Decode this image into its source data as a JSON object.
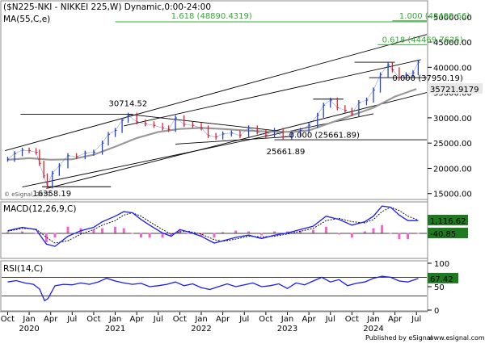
{
  "header": {
    "symbol_title": "($N225-NKI - NIKKEI 225,W) Dynamic,0:00-24:00",
    "ma_label": "MA(55,C,e)",
    "watermark": "© eSignal, 2019"
  },
  "footer": {
    "published": "Published by eSignal",
    "site": "www.esignal.com"
  },
  "colors": {
    "price_up": "#2244cc",
    "price_down": "#dd2222",
    "ma": "#999999",
    "fib": "#33aa33",
    "channel": "#000000",
    "macd": "#1a1aff",
    "signal": "#000000",
    "hist": "#ee66cc",
    "rsi": "#1a1aff",
    "badge": "#1f7a1f"
  },
  "chart_data": [
    {
      "type": "line",
      "title": "($N225-NKI - NIKKEI 225,W) Dynamic,0:00-24:00",
      "panel": "price",
      "ylim": [
        14000,
        53000
      ],
      "yticks": [
        15000,
        20000,
        25000,
        30000,
        35000,
        40000,
        45000,
        50000
      ],
      "ytick_labels": [
        "15000.00",
        "20000.00",
        "25000.00",
        "30000.00",
        "35000.00",
        "40000.00",
        "45000.00",
        "50000.00"
      ],
      "xlim": [
        2019.68,
        2024.62
      ],
      "last_price_label": "35721.9179",
      "last_price": 35721.9179,
      "annotations": [
        {
          "text": "30714.52",
          "x": 2021.15,
          "y": 30714.52
        },
        {
          "text": "25661.89",
          "x": 2023.02,
          "y": 25661.89
        },
        {
          "text": "16358.19",
          "x": 2020.21,
          "y": 16358.19
        }
      ],
      "fib_levels": [
        {
          "text": "0.000 (37950.19)",
          "value": 37950.19
        },
        {
          "text": "0.000 (25661.89)",
          "value": 25661.89
        },
        {
          "text": "0.618 (44469.7625)",
          "value": 44469.7625
        },
        {
          "text": "1.000 (48499.66)",
          "value": 48499.66
        },
        {
          "text": "1.618 (48890.4319)",
          "value": 48890.4319
        }
      ],
      "series": [
        {
          "name": "NIKKEI 225",
          "x": [
            2019.75,
            2019.83,
            2019.92,
            2020.0,
            2020.08,
            2020.12,
            2020.17,
            2020.21,
            2020.27,
            2020.35,
            2020.45,
            2020.55,
            2020.65,
            2020.75,
            2020.85,
            2020.92,
            2021.0,
            2021.08,
            2021.15,
            2021.25,
            2021.35,
            2021.45,
            2021.55,
            2021.62,
            2021.7,
            2021.8,
            2021.9,
            2022.0,
            2022.08,
            2022.17,
            2022.25,
            2022.35,
            2022.45,
            2022.55,
            2022.65,
            2022.75,
            2022.85,
            2022.95,
            2023.05,
            2023.15,
            2023.25,
            2023.35,
            2023.42,
            2023.5,
            2023.58,
            2023.67,
            2023.75,
            2023.83,
            2023.92,
            2024.0,
            2024.08,
            2024.17,
            2024.22,
            2024.3,
            2024.38,
            2024.46,
            2024.52
          ],
          "values": [
            21800,
            22900,
            23600,
            23500,
            23200,
            21000,
            18500,
            16500,
            19000,
            20500,
            22500,
            22300,
            23000,
            23200,
            25000,
            26700,
            27500,
            29500,
            30500,
            29200,
            28800,
            28500,
            28000,
            27700,
            30000,
            28700,
            28500,
            28000,
            26500,
            26200,
            26800,
            27000,
            26500,
            28000,
            27200,
            26500,
            27500,
            26200,
            26800,
            27500,
            28500,
            30500,
            32500,
            33500,
            32000,
            31500,
            30800,
            33000,
            33500,
            35500,
            38500,
            40500,
            39500,
            38000,
            38500,
            38900,
            41000
          ]
        },
        {
          "name": "MA(55,C,e)",
          "x": [
            2019.75,
            2020.0,
            2020.25,
            2020.5,
            2020.75,
            2021.0,
            2021.25,
            2021.5,
            2021.75,
            2022.0,
            2022.25,
            2022.5,
            2022.75,
            2023.0,
            2023.25,
            2023.5,
            2023.75,
            2024.0,
            2024.25,
            2024.5
          ],
          "values": [
            21700,
            22000,
            21700,
            21800,
            22700,
            24300,
            26000,
            27200,
            27800,
            28000,
            27800,
            27500,
            27300,
            27200,
            27500,
            29000,
            30500,
            32000,
            34200,
            35700
          ]
        }
      ]
    },
    {
      "type": "line",
      "title": "MACD(12,26,9,C)",
      "panel": "macd",
      "ylim": [
        -2200,
        2700
      ],
      "zero_line": -40.85,
      "labels": [
        {
          "text": "1,116.62",
          "value": 1116.62
        },
        {
          "text": "-40.85",
          "value": -40.85
        }
      ],
      "series": [
        {
          "name": "MACD",
          "x": [
            2019.75,
            2019.92,
            2020.08,
            2020.2,
            2020.3,
            2020.45,
            2020.6,
            2020.75,
            2020.85,
            2021.0,
            2021.1,
            2021.2,
            2021.3,
            2021.4,
            2021.55,
            2021.65,
            2021.75,
            2021.85,
            2022.0,
            2022.15,
            2022.25,
            2022.4,
            2022.55,
            2022.7,
            2022.85,
            2023.0,
            2023.15,
            2023.3,
            2023.45,
            2023.6,
            2023.75,
            2023.9,
            2024.0,
            2024.1,
            2024.2,
            2024.3,
            2024.4,
            2024.52
          ],
          "values": [
            200,
            500,
            300,
            -1000,
            -1200,
            -300,
            200,
            500,
            1000,
            1500,
            1900,
            1800,
            1200,
            700,
            0,
            -300,
            300,
            100,
            -300,
            -900,
            -700,
            -400,
            -200,
            -500,
            -200,
            0,
            300,
            600,
            1500,
            1200,
            700,
            1000,
            1500,
            2400,
            2300,
            1600,
            1100,
            1100
          ]
        },
        {
          "name": "Signal",
          "x": [
            2019.75,
            2019.92,
            2020.08,
            2020.2,
            2020.3,
            2020.45,
            2020.6,
            2020.75,
            2020.85,
            2021.0,
            2021.1,
            2021.2,
            2021.3,
            2021.4,
            2021.55,
            2021.65,
            2021.75,
            2021.85,
            2022.0,
            2022.15,
            2022.25,
            2022.4,
            2022.55,
            2022.7,
            2022.85,
            2023.0,
            2023.15,
            2023.3,
            2023.45,
            2023.6,
            2023.75,
            2023.9,
            2024.0,
            2024.1,
            2024.2,
            2024.3,
            2024.4,
            2024.52
          ],
          "values": [
            150,
            400,
            350,
            -400,
            -900,
            -700,
            -100,
            300,
            700,
            1100,
            1600,
            1800,
            1500,
            1000,
            300,
            -100,
            100,
            150,
            -100,
            -600,
            -750,
            -550,
            -300,
            -350,
            -300,
            -100,
            150,
            400,
            1100,
            1300,
            1000,
            900,
            1200,
            1900,
            2300,
            2000,
            1500,
            1150
          ]
        }
      ]
    },
    {
      "type": "line",
      "title": "RSI(14,C)",
      "panel": "rsi",
      "ylim": [
        0,
        100
      ],
      "yticks": [
        0,
        50,
        100
      ],
      "ytick_labels": [
        "0",
        "50",
        "100"
      ],
      "levels": [
        30,
        70
      ],
      "last_label": "67.42",
      "last_value": 67.42,
      "series": [
        {
          "name": "RSI",
          "x": [
            2019.75,
            2019.85,
            2019.95,
            2020.05,
            2020.12,
            2020.18,
            2020.22,
            2020.3,
            2020.4,
            2020.5,
            2020.6,
            2020.7,
            2020.8,
            2020.9,
            2021.0,
            2021.1,
            2021.2,
            2021.3,
            2021.4,
            2021.5,
            2021.6,
            2021.7,
            2021.8,
            2021.9,
            2022.0,
            2022.1,
            2022.2,
            2022.3,
            2022.4,
            2022.5,
            2022.6,
            2022.7,
            2022.8,
            2022.9,
            2023.0,
            2023.1,
            2023.2,
            2023.3,
            2023.4,
            2023.5,
            2023.6,
            2023.7,
            2023.8,
            2023.9,
            2024.0,
            2024.1,
            2024.2,
            2024.3,
            2024.4,
            2024.52
          ],
          "values": [
            60,
            63,
            58,
            55,
            45,
            20,
            25,
            52,
            55,
            54,
            58,
            55,
            60,
            68,
            62,
            58,
            55,
            57,
            50,
            52,
            55,
            60,
            52,
            56,
            48,
            44,
            50,
            56,
            50,
            54,
            58,
            50,
            52,
            56,
            46,
            58,
            54,
            62,
            70,
            60,
            65,
            52,
            57,
            60,
            68,
            72,
            70,
            62,
            60,
            67.42
          ]
        }
      ]
    }
  ],
  "x_axis": {
    "labels": [
      {
        "text": "Oct",
        "x": 2019.75
      },
      {
        "text": "Jan",
        "x": 2020.0
      },
      {
        "text": "Apr",
        "x": 2020.25
      },
      {
        "text": "Jul",
        "x": 2020.5
      },
      {
        "text": "Oct",
        "x": 2020.75
      },
      {
        "text": "Jan",
        "x": 2021.0
      },
      {
        "text": "Apr",
        "x": 2021.25
      },
      {
        "text": "Jul",
        "x": 2021.5
      },
      {
        "text": "Oct",
        "x": 2021.75
      },
      {
        "text": "Jan",
        "x": 2022.0
      },
      {
        "text": "Apr",
        "x": 2022.25
      },
      {
        "text": "Jul",
        "x": 2022.5
      },
      {
        "text": "Oct",
        "x": 2022.75
      },
      {
        "text": "Jan",
        "x": 2023.0
      },
      {
        "text": "Apr",
        "x": 2023.25
      },
      {
        "text": "Jul",
        "x": 2023.5
      },
      {
        "text": "Oct",
        "x": 2023.75
      },
      {
        "text": "Jan",
        "x": 2024.0
      },
      {
        "text": "Apr",
        "x": 2024.25
      },
      {
        "text": "Jul",
        "x": 2024.5
      }
    ],
    "years": [
      {
        "text": "2020",
        "x": 2020.0
      },
      {
        "text": "2021",
        "x": 2021.0
      },
      {
        "text": "2022",
        "x": 2022.0
      },
      {
        "text": "2023",
        "x": 2023.0
      },
      {
        "text": "2024",
        "x": 2024.0
      }
    ]
  }
}
